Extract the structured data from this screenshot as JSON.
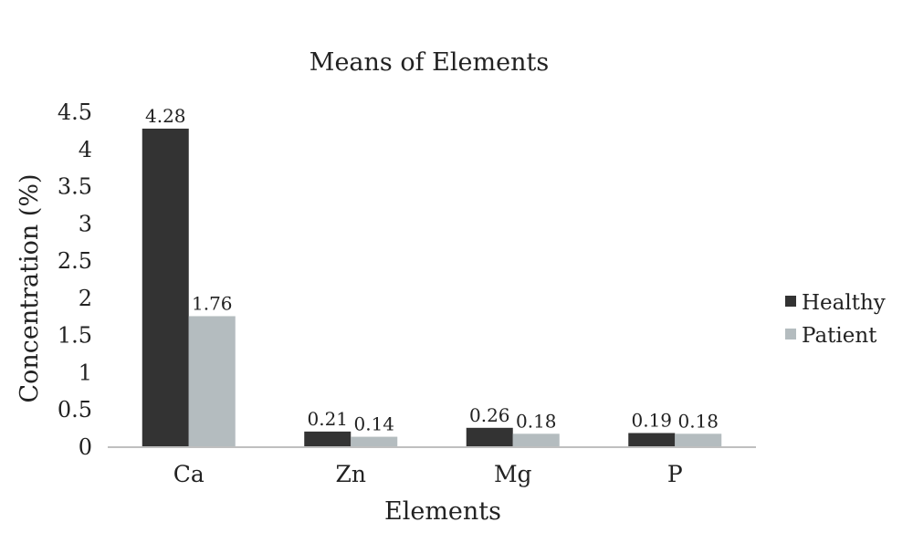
{
  "chart_data": {
    "type": "bar",
    "title": "Means of Elements",
    "xlabel": "Elements",
    "ylabel": "Concentration (%)",
    "categories": [
      "Ca",
      "Zn",
      "Mg",
      "P"
    ],
    "series": [
      {
        "name": "Healthy",
        "values": [
          4.28,
          0.21,
          0.26,
          0.19
        ],
        "color": "#333333"
      },
      {
        "name": "Patient",
        "values": [
          1.76,
          0.14,
          0.18,
          0.18
        ],
        "color": "#b4bcbf"
      }
    ],
    "ylim": [
      0,
      4.5
    ],
    "yticks": [
      "0",
      "0.5",
      "1",
      "1.5",
      "2",
      "2.5",
      "3",
      "3.5",
      "4",
      "4.5"
    ],
    "data_labels": [
      [
        "4.28",
        "0.21",
        "0.26",
        "0.19"
      ],
      [
        "1.76",
        "0.14",
        "0.18",
        "0.18"
      ]
    ],
    "grid": false,
    "legend": "right"
  }
}
